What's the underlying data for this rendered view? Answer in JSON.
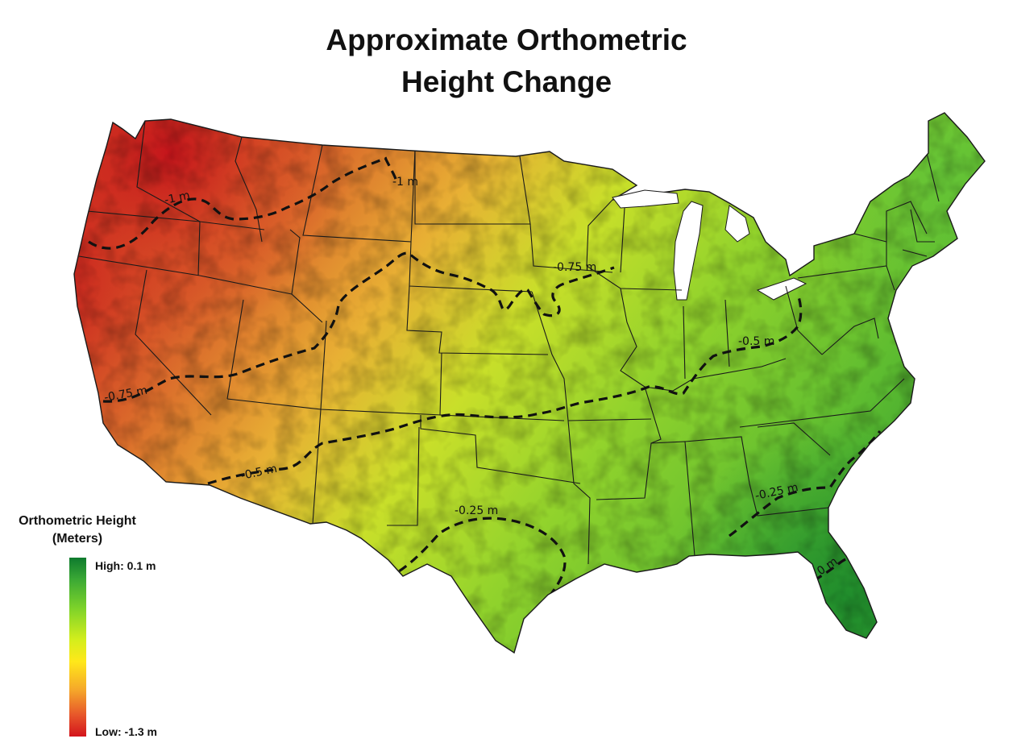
{
  "title": {
    "line1": "Approximate Orthometric",
    "line2": "Height Change"
  },
  "legend": {
    "title_line1": "Orthometric Height",
    "title_line2": "(Meters)",
    "high_label": "High: 0.1 m",
    "low_label": "Low: -1.3 m",
    "colors": [
      "#0e7a2e",
      "#7cd22a",
      "#ffe81a",
      "#f5a72a",
      "#d3141c"
    ]
  },
  "contours": {
    "neg1_west": "-1 m",
    "neg1_north": "-1 m",
    "neg075_west": "-0.75 m",
    "neg075_north": "-0.75 m",
    "neg05_east": "-0.5 m",
    "neg05_south": "-0.5 m",
    "neg025_south": "-0.25 m",
    "neg025_east": "-0.25 m",
    "zero": "0 m"
  }
}
